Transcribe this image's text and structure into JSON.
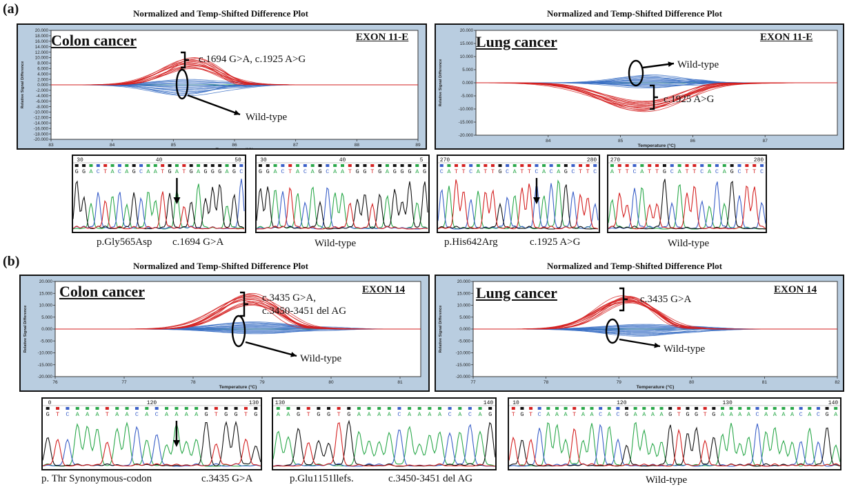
{
  "sections": {
    "a": "(a)",
    "b": "(b)"
  },
  "plot_title": "Normalized and Temp-Shifted Difference Plot",
  "axis": {
    "ylabel": "Relative Signal Difference",
    "xlabel": "Temperature (°C)"
  },
  "panels": {
    "a_colon": {
      "cancer": "Colon cancer",
      "exon": "EXON 11-E",
      "mutant_label": "c.1694 G>A, c.1925 A>G",
      "wt_label": "Wild-type"
    },
    "a_lung": {
      "cancer": "Lung cancer",
      "exon": "EXON 11-E",
      "mutant_label": "c.1925 A>G",
      "wt_label": "Wild-type"
    },
    "b_colon": {
      "cancer": "Colon cancer",
      "exon": "EXON 14",
      "mutant_label_1": "c.3435 G>A,",
      "mutant_label_2": "c.3450-3451 del AG",
      "wt_label": "Wild-type"
    },
    "b_lung": {
      "cancer": "Lung cancer",
      "exon": "EXON 14",
      "mutant_label": "c.3435 G>A",
      "wt_label": "Wild-type"
    }
  },
  "captions": {
    "a1_left": "p.Gly565Asp",
    "a1_right": "c.1694 G>A",
    "a2": "Wild-type",
    "a3_left": "p.His642Arg",
    "a3_right": "c.1925 A>G",
    "a4": "Wild-type",
    "b1_left": "p. Thr Synonymous-codon",
    "b1_right": "c.3435 G>A",
    "b2_left": "p.Glu1151llefs.",
    "b2_right": "c.3450-3451 del AG",
    "b3": "Wild-type"
  },
  "colors": {
    "mutant": "#d42020",
    "wild_type": "#3a6fc4",
    "baseline": "#2ea84a",
    "panel_bg": "#b9cde0"
  },
  "chart_data": [
    {
      "id": "a_colon",
      "type": "line",
      "title": "Normalized and Temp-Shifted Difference Plot",
      "xlabel": "Temperature (°C)",
      "ylabel": "Relative Signal Difference",
      "xlim": [
        83,
        89
      ],
      "ylim": [
        -20,
        20
      ],
      "xticks": [
        83,
        84,
        85,
        86,
        87,
        88,
        89
      ],
      "yticks": [
        20,
        18,
        16,
        14,
        12,
        10,
        8,
        6,
        4,
        2,
        0,
        -2,
        -4,
        -6,
        -8,
        -10,
        -12,
        -14,
        -16,
        -18,
        -20
      ],
      "ytick_labels": [
        "20.000",
        "18.000",
        "16.000",
        "14.000",
        "12.000",
        "10.000",
        "8.000",
        "6.000",
        "4.000",
        "2.000",
        "0.000",
        "-2.000",
        "-4.000",
        "-6.000",
        "-8.000",
        "-10.000",
        "-12.000",
        "-14.000",
        "-16.000",
        "-18.000",
        "-20.000"
      ],
      "series": [
        {
          "group": "mutant",
          "peak_x": 85.3,
          "peak_y_range": [
            6,
            10
          ],
          "width": 0.45
        },
        {
          "group": "wild-type",
          "peak_x": 85.2,
          "peak_y_range": [
            -4,
            2
          ],
          "width": 0.5
        }
      ]
    },
    {
      "id": "a_lung",
      "type": "line",
      "title": "Normalized and Temp-Shifted Difference Plot",
      "xlabel": "Temperature (°C)",
      "ylabel": "Relative Signal Difference",
      "xlim": [
        83,
        88
      ],
      "ylim": [
        -20,
        20
      ],
      "xticks": [
        84,
        85,
        86,
        87
      ],
      "yticks": [
        20,
        15,
        10,
        5,
        0,
        -5,
        -10,
        -15,
        -20
      ],
      "ytick_labels": [
        "20.000",
        "15.000",
        "10.000",
        "5.000",
        "0.000",
        "-5.000",
        "-10.000",
        "-15.000",
        "-20.000"
      ],
      "series": [
        {
          "group": "mutant",
          "peak_x": 85.3,
          "peak_y_range": [
            -11,
            -7
          ],
          "width": 0.55
        },
        {
          "group": "wild-type",
          "peak_x": 85.4,
          "peak_y_range": [
            -2,
            3
          ],
          "width": 0.4
        }
      ]
    },
    {
      "id": "b_colon",
      "type": "line",
      "title": "Normalized and Temp-Shifted Difference Plot",
      "xlabel": "Temperature (°C)",
      "ylabel": "Relative Signal Difference",
      "xlim": [
        76,
        81.3
      ],
      "ylim": [
        -20,
        20
      ],
      "xticks": [
        76,
        77,
        78,
        79,
        80,
        81
      ],
      "yticks": [
        20,
        15,
        10,
        5,
        0,
        -5,
        -10,
        -15,
        -20
      ],
      "ytick_labels": [
        "20.000",
        "15.000",
        "10.000",
        "5.000",
        "0.000",
        "-5.000",
        "-10.000",
        "-15.000",
        "-20.000"
      ],
      "series": [
        {
          "group": "mutant",
          "peak_x": 78.8,
          "peak_y_range": [
            10,
            15
          ],
          "width": 0.45
        },
        {
          "group": "wild-type",
          "peak_x": 78.9,
          "peak_y_range": [
            -2,
            3
          ],
          "width": 0.55
        }
      ]
    },
    {
      "id": "b_lung",
      "type": "line",
      "title": "Normalized and Temp-Shifted Difference Plot",
      "xlabel": "Temperature (°C)",
      "ylabel": "Relative Signal Difference",
      "xlim": [
        77,
        82
      ],
      "ylim": [
        -20,
        20
      ],
      "xticks": [
        77,
        78,
        79,
        80,
        81,
        82
      ],
      "yticks": [
        20,
        15,
        10,
        5,
        0,
        -5,
        -10,
        -15,
        -20
      ],
      "ytick_labels": [
        "20.000",
        "15.000",
        "10.000",
        "5.000",
        "0.000",
        "-5.000",
        "-10.000",
        "-15.000",
        "-20.000"
      ],
      "series": [
        {
          "group": "mutant",
          "peak_x": 79.1,
          "peak_y_range": [
            11,
            14
          ],
          "width": 0.4
        },
        {
          "group": "wild-type",
          "peak_x": 79.3,
          "peak_y_range": [
            -3,
            2
          ],
          "width": 0.5
        }
      ]
    }
  ],
  "chromatograms": [
    {
      "id": "a1",
      "positions": [
        "30",
        "40",
        "50"
      ],
      "sequence": "GGACTACAGCAATGATGAGGGAGC",
      "arrow": true
    },
    {
      "id": "a2",
      "positions": [
        "30",
        "40",
        "5"
      ],
      "sequence": "GGACTACAGCAATGGTGAGGGAG",
      "arrow": false
    },
    {
      "id": "a3",
      "positions": [
        "270",
        "280"
      ],
      "sequence": "CATTCATTGCATTCACAGCTTC",
      "arrow": true
    },
    {
      "id": "a4",
      "positions": [
        "270",
        "280"
      ],
      "sequence": "ATTCATTGCATTCACAGCTTC",
      "arrow": false
    },
    {
      "id": "b1",
      "positions": [
        "0",
        "120",
        "130"
      ],
      "sequence": "GTCAAATAACACAAAAGTGGTG",
      "arrow": true
    },
    {
      "id": "b2",
      "positions": [
        "130",
        "140"
      ],
      "sequence": "AAGTGGTGAAAACAAAACACAG",
      "arrow": false
    },
    {
      "id": "b3",
      "positions": [
        "10",
        "120",
        "130",
        "140"
      ],
      "sequence": "TGTCAAATAACACGAAAAGTGGTGAAAACAAAACACGA",
      "arrow": false
    }
  ]
}
